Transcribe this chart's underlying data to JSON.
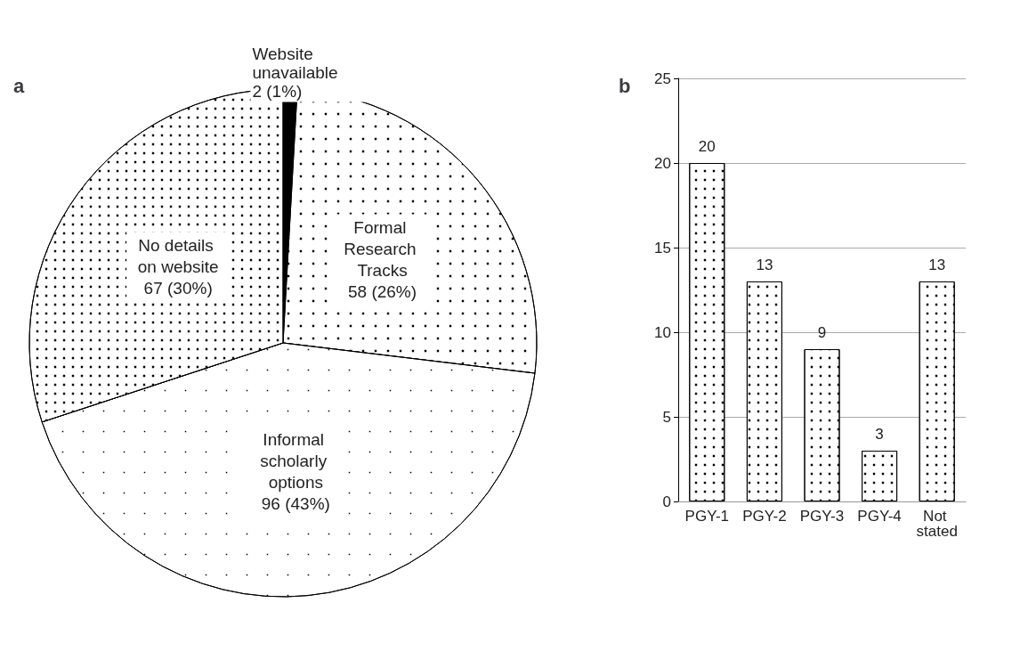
{
  "chart_data": [
    {
      "type": "pie",
      "title": "a",
      "categories": [
        "Website unavailable",
        "Formal Research Tracks",
        "Informal scholarly options",
        "No details on website"
      ],
      "values": [
        2,
        58,
        96,
        67
      ],
      "value_labels": [
        "2 (1%)",
        "58 (26%)",
        "96 (43%)",
        "67 (30%)"
      ],
      "colors": [
        "#000000",
        "#ffffff",
        "#ffffff",
        "#ffffff"
      ],
      "legend": false
    },
    {
      "type": "bar",
      "title": "b",
      "categories": [
        "PGY-1",
        "PGY-2",
        "PGY-3",
        "PGY-4",
        "Not stated"
      ],
      "values": [
        20,
        13,
        9,
        3,
        13
      ],
      "color": "#ffffff",
      "ylim": [
        0,
        25
      ],
      "yticks": [
        0,
        5,
        10,
        15,
        20,
        25
      ],
      "grid": "y",
      "data_labels": true,
      "legend": false
    }
  ]
}
